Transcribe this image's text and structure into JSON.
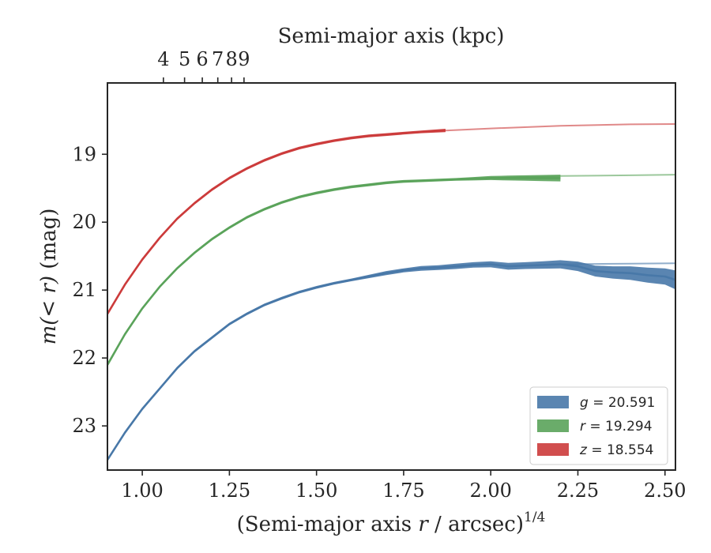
{
  "chart_data": {
    "type": "line",
    "xlabel": "(Semi-major axis r / arcsec)",
    "xlabel_prefix": "(Semi-major axis ",
    "xlabel_var": "r",
    "xlabel_suffix": " / arcsec)",
    "xlabel_sup": "1/4",
    "ylabel": "m(< r) (mag)",
    "ylabel_math": "m(< r)",
    "ylabel_unit": " (mag)",
    "top_xlabel": "Semi-major axis (kpc)",
    "xlim": [
      0.9,
      2.53
    ],
    "ylim": [
      23.65,
      17.95
    ],
    "y_inverted": true,
    "x_ticks": [
      1.0,
      1.25,
      1.5,
      1.75,
      2.0,
      2.25,
      2.5
    ],
    "x_tick_labels": [
      "1.00",
      "1.25",
      "1.50",
      "1.75",
      "2.00",
      "2.25",
      "2.50"
    ],
    "y_ticks": [
      19,
      20,
      21,
      22,
      23
    ],
    "y_tick_labels": [
      "19",
      "20",
      "21",
      "22",
      "23"
    ],
    "top_ticks": [
      4,
      5,
      6,
      7,
      8,
      9
    ],
    "top_tick_labels": [
      "4",
      "5",
      "6",
      "7",
      "8",
      "9"
    ],
    "top_tick_positions_x": [
      1.0606,
      1.1213,
      1.1722,
      1.2167,
      1.2562,
      1.2919
    ],
    "legend_position": "lower-right",
    "series": [
      {
        "name": "g = 20.591",
        "legend_var": "g",
        "legend_value": "20.591",
        "color": "#4878a8",
        "points": [
          [
            0.9,
            23.5
          ],
          [
            0.95,
            23.1
          ],
          [
            1.0,
            22.75
          ],
          [
            1.05,
            22.45
          ],
          [
            1.1,
            22.15
          ],
          [
            1.15,
            21.9
          ],
          [
            1.2,
            21.7
          ],
          [
            1.25,
            21.5
          ],
          [
            1.3,
            21.35
          ],
          [
            1.35,
            21.22
          ],
          [
            1.4,
            21.12
          ],
          [
            1.45,
            21.03
          ],
          [
            1.5,
            20.96
          ],
          [
            1.55,
            20.9
          ],
          [
            1.6,
            20.85
          ],
          [
            1.65,
            20.8
          ],
          [
            1.7,
            20.75
          ],
          [
            1.75,
            20.71
          ],
          [
            1.8,
            20.68
          ],
          [
            1.85,
            20.67
          ],
          [
            1.9,
            20.65
          ],
          [
            1.95,
            20.63
          ],
          [
            2.0,
            20.62
          ],
          [
            2.05,
            20.65
          ],
          [
            2.1,
            20.64
          ],
          [
            2.15,
            20.63
          ],
          [
            2.2,
            20.62
          ],
          [
            2.25,
            20.65
          ],
          [
            2.3,
            20.72
          ],
          [
            2.35,
            20.74
          ],
          [
            2.4,
            20.75
          ],
          [
            2.45,
            20.78
          ],
          [
            2.5,
            20.8
          ],
          [
            2.53,
            20.85
          ]
        ],
        "band_width": [
          0.02,
          0.02,
          0.02,
          0.02,
          0.02,
          0.02,
          0.02,
          0.02,
          0.02,
          0.02,
          0.02,
          0.02,
          0.02,
          0.02,
          0.02,
          0.025,
          0.03,
          0.03,
          0.035,
          0.035,
          0.04,
          0.04,
          0.045,
          0.05,
          0.05,
          0.055,
          0.06,
          0.07,
          0.08,
          0.09,
          0.1,
          0.11,
          0.12,
          0.14
        ],
        "extrapolation": [
          [
            2.2,
            20.62
          ],
          [
            2.3,
            20.615
          ],
          [
            2.4,
            20.61
          ],
          [
            2.53,
            20.605
          ]
        ]
      },
      {
        "name": "r = 19.294",
        "legend_var": "r",
        "legend_value": "19.294",
        "color": "#5aa35a",
        "points": [
          [
            0.9,
            22.1
          ],
          [
            0.95,
            21.65
          ],
          [
            1.0,
            21.27
          ],
          [
            1.05,
            20.95
          ],
          [
            1.1,
            20.68
          ],
          [
            1.15,
            20.45
          ],
          [
            1.2,
            20.25
          ],
          [
            1.25,
            20.08
          ],
          [
            1.3,
            19.93
          ],
          [
            1.35,
            19.81
          ],
          [
            1.4,
            19.71
          ],
          [
            1.45,
            19.63
          ],
          [
            1.5,
            19.57
          ],
          [
            1.55,
            19.52
          ],
          [
            1.6,
            19.48
          ],
          [
            1.65,
            19.45
          ],
          [
            1.7,
            19.42
          ],
          [
            1.75,
            19.4
          ],
          [
            1.8,
            19.39
          ],
          [
            1.85,
            19.38
          ],
          [
            1.9,
            19.37
          ],
          [
            1.95,
            19.36
          ],
          [
            2.0,
            19.35
          ],
          [
            2.05,
            19.35
          ],
          [
            2.1,
            19.35
          ],
          [
            2.15,
            19.35
          ],
          [
            2.2,
            19.35
          ]
        ],
        "band_width": [
          0.02,
          0.02,
          0.02,
          0.02,
          0.02,
          0.02,
          0.02,
          0.02,
          0.02,
          0.02,
          0.02,
          0.02,
          0.02,
          0.02,
          0.02,
          0.02,
          0.02,
          0.02,
          0.02,
          0.02,
          0.02,
          0.025,
          0.03,
          0.035,
          0.04,
          0.045,
          0.05
        ],
        "extrapolation": [
          [
            2.0,
            19.35
          ],
          [
            2.2,
            19.32
          ],
          [
            2.4,
            19.31
          ],
          [
            2.53,
            19.3
          ]
        ]
      },
      {
        "name": "z = 18.554",
        "legend_var": "z",
        "legend_value": "18.554",
        "color": "#cc3b3b",
        "points": [
          [
            0.9,
            21.35
          ],
          [
            0.95,
            20.92
          ],
          [
            1.0,
            20.55
          ],
          [
            1.05,
            20.23
          ],
          [
            1.1,
            19.95
          ],
          [
            1.15,
            19.72
          ],
          [
            1.2,
            19.52
          ],
          [
            1.25,
            19.35
          ],
          [
            1.3,
            19.21
          ],
          [
            1.35,
            19.09
          ],
          [
            1.4,
            18.99
          ],
          [
            1.45,
            18.91
          ],
          [
            1.5,
            18.85
          ],
          [
            1.55,
            18.8
          ],
          [
            1.6,
            18.76
          ],
          [
            1.65,
            18.73
          ],
          [
            1.7,
            18.71
          ],
          [
            1.75,
            18.69
          ],
          [
            1.8,
            18.67
          ],
          [
            1.87,
            18.65
          ]
        ],
        "band_width": [
          0.02,
          0.02,
          0.02,
          0.02,
          0.02,
          0.02,
          0.02,
          0.02,
          0.02,
          0.02,
          0.02,
          0.02,
          0.02,
          0.02,
          0.02,
          0.02,
          0.02,
          0.02,
          0.02,
          0.025
        ],
        "extrapolation": [
          [
            1.87,
            18.65
          ],
          [
            2.0,
            18.62
          ],
          [
            2.2,
            18.58
          ],
          [
            2.4,
            18.56
          ],
          [
            2.53,
            18.555
          ]
        ]
      }
    ]
  }
}
